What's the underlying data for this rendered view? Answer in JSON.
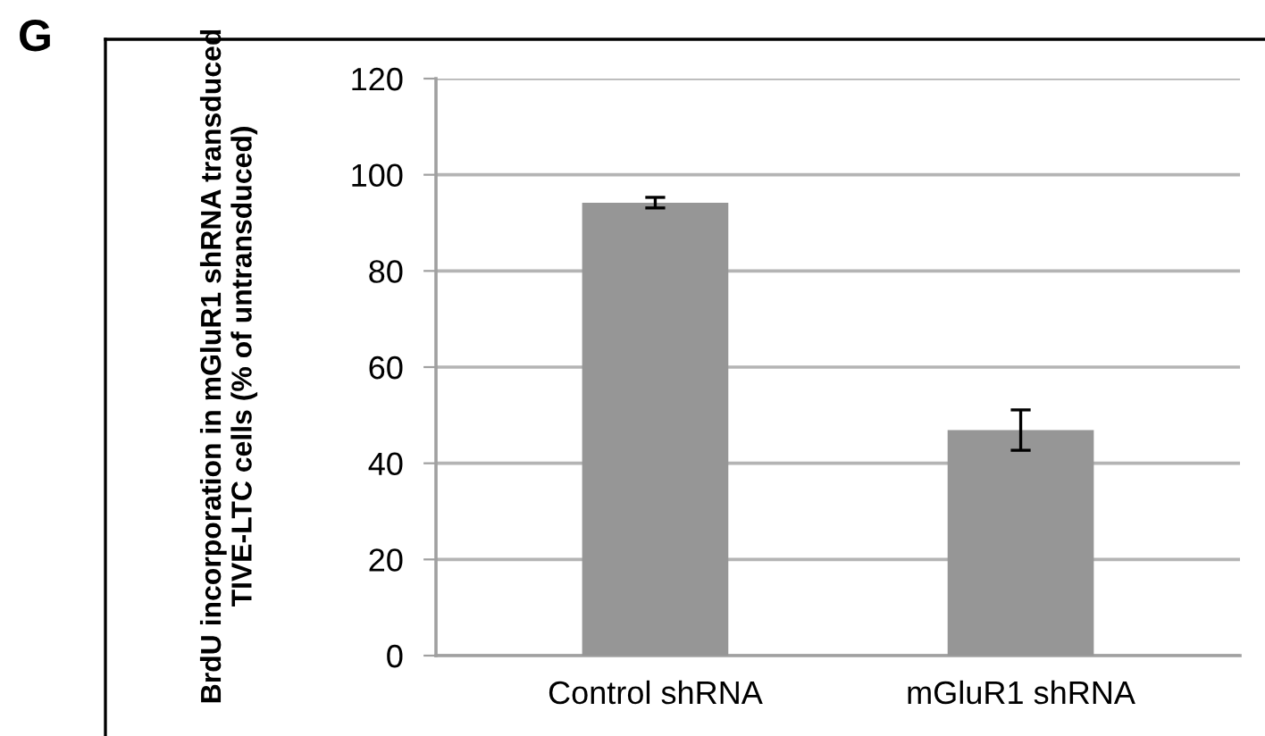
{
  "chart_data": {
    "type": "bar",
    "ylabel": "BrdU incorporation in mGluR1 shRNA transduced TIVE-LTC cells (% of untransduced)",
    "categories": [
      "Control shRNA",
      "mGluR1 shRNA"
    ],
    "values": [
      94.2,
      46.9
    ],
    "errors": [
      1.1,
      4.2
    ],
    "color": "#969696",
    "ylim": [
      0,
      120
    ],
    "yticks": [
      0,
      20,
      40,
      60,
      80,
      100,
      120
    ],
    "grid": "y",
    "annotations": [
      "G"
    ]
  }
}
